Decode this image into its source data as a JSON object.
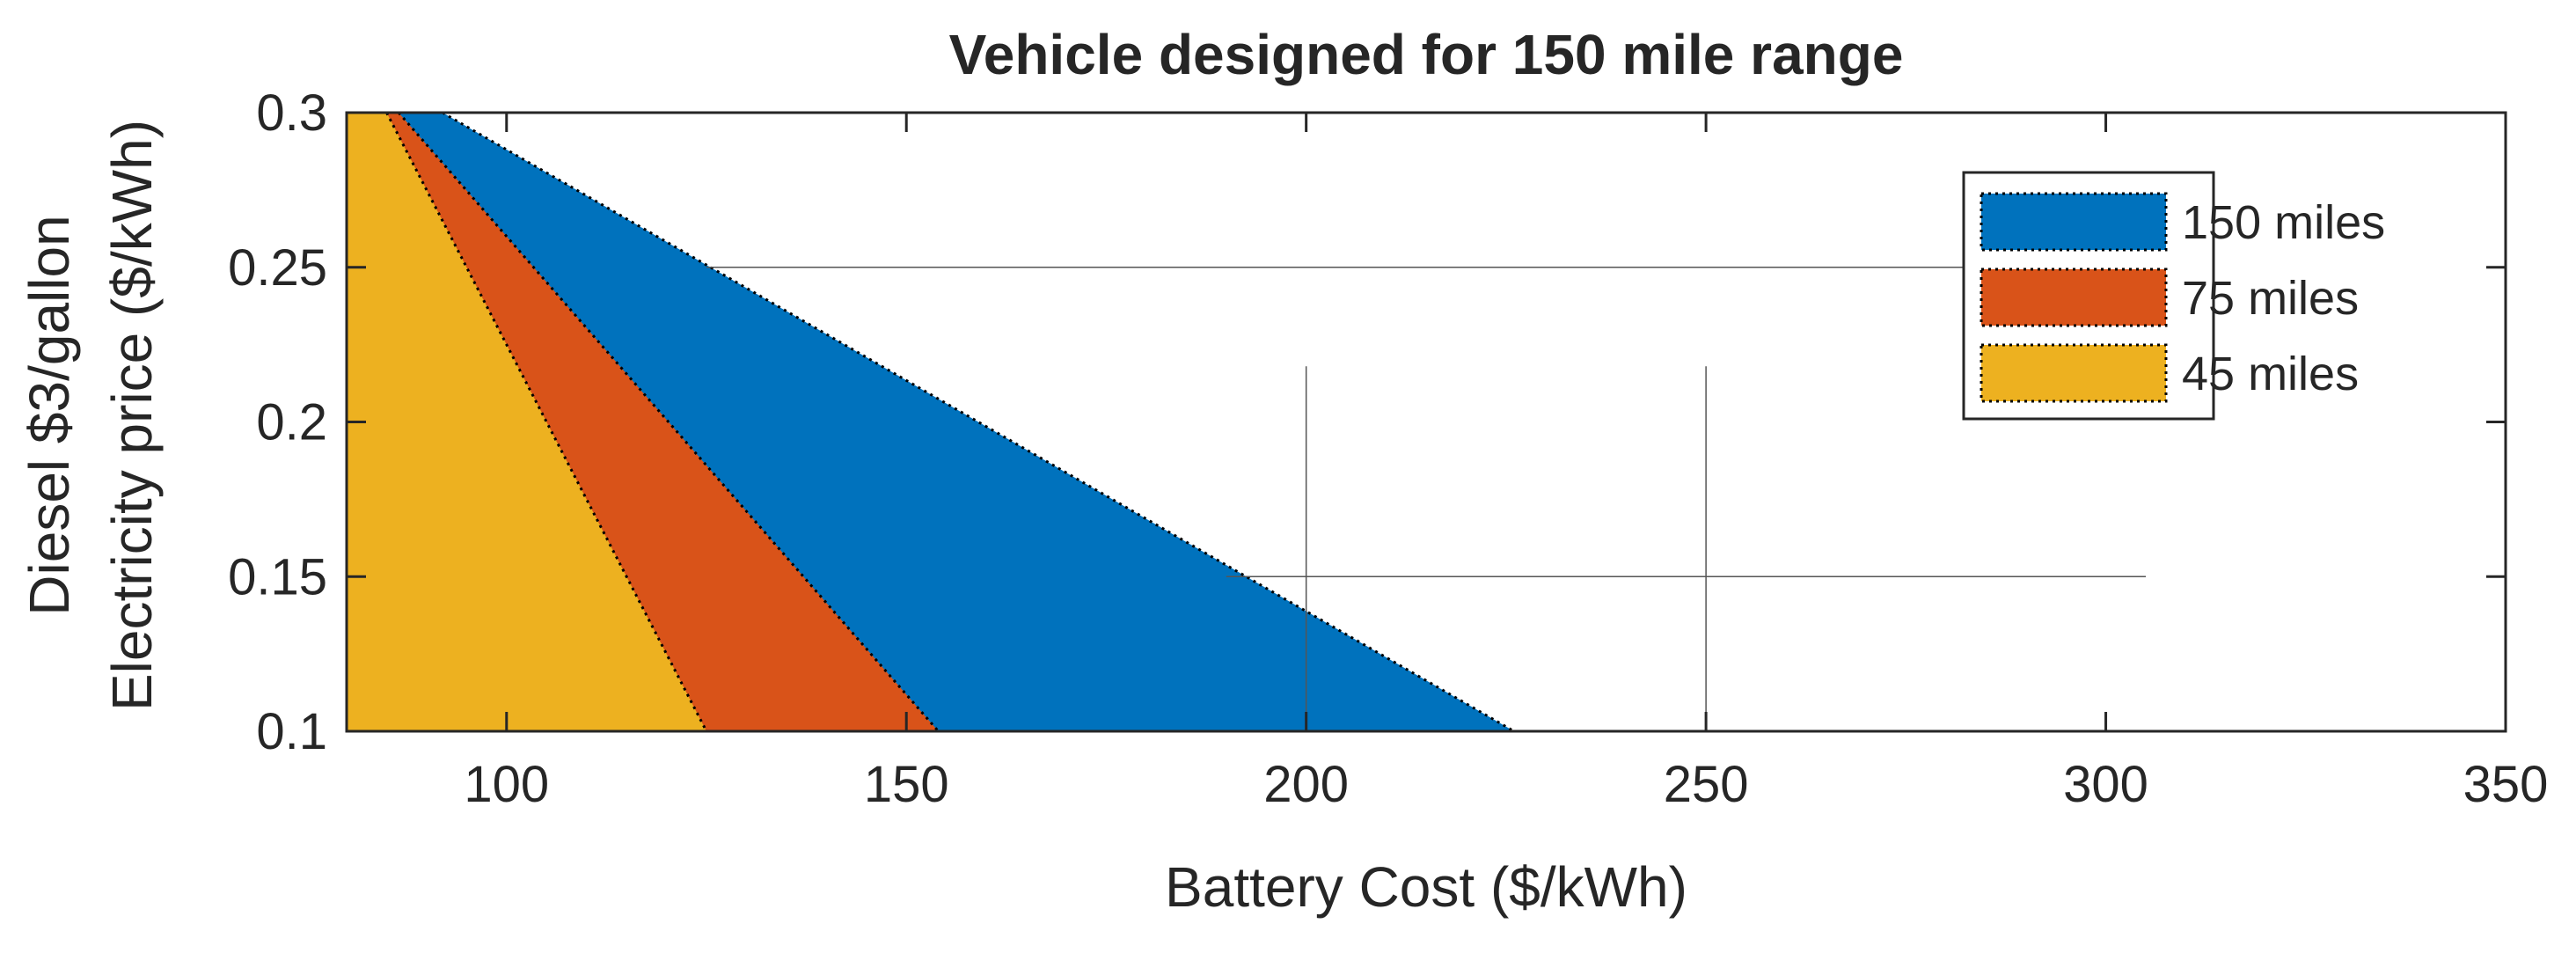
{
  "chart_data": {
    "type": "area",
    "title": "Vehicle designed for 150 mile range",
    "xlabel": "Battery Cost ($/kWh)",
    "ylabel_lines": [
      "Diesel $3/gallon",
      "Electricity price ($/kWh)"
    ],
    "xlim": [
      80,
      350
    ],
    "ylim": [
      0.1,
      0.3
    ],
    "xticks": [
      100,
      150,
      200,
      250,
      300,
      350
    ],
    "yticks": [
      0.1,
      0.15,
      0.2,
      0.25,
      0.3
    ],
    "grid": false,
    "legend_position": "top-right",
    "series": [
      {
        "name": "150 miles",
        "color": "#0072BD",
        "boundary": {
          "x": [
            92,
            226
          ],
          "y": [
            0.3,
            0.1
          ]
        }
      },
      {
        "name": "75 miles",
        "color": "#D95319",
        "boundary": {
          "x": [
            86.5,
            154
          ],
          "y": [
            0.3,
            0.1
          ]
        }
      },
      {
        "name": "45 miles",
        "color": "#EDB120",
        "boundary": {
          "x": [
            85,
            125
          ],
          "y": [
            0.3,
            0.1
          ]
        }
      }
    ],
    "reference_lines": [
      {
        "orientation": "horizontal",
        "y": 0.25,
        "x": [
          125,
          305
        ]
      },
      {
        "orientation": "horizontal",
        "y": 0.15,
        "x": [
          190,
          305
        ]
      },
      {
        "orientation": "vertical",
        "x": 200,
        "y": [
          0.1,
          0.218
        ]
      },
      {
        "orientation": "vertical",
        "x": 250,
        "y": [
          0.1,
          0.218
        ]
      }
    ]
  }
}
